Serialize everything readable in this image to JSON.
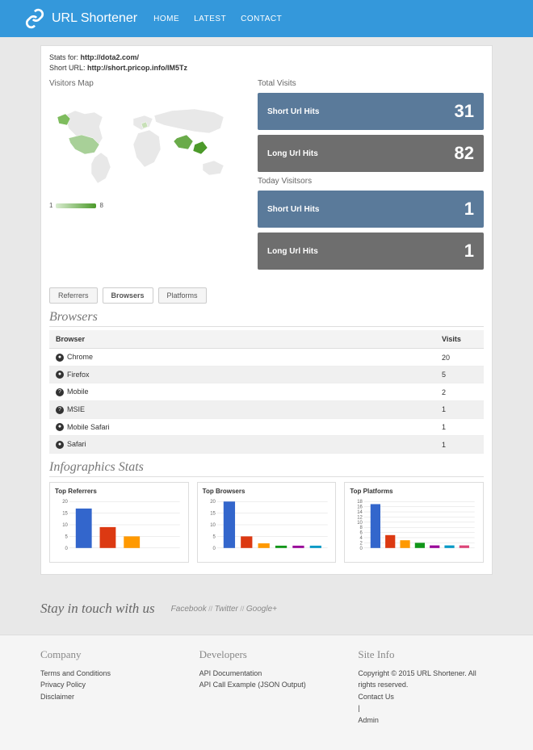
{
  "header": {
    "brand": "URL Shortener",
    "nav": [
      "HOME",
      "LATEST",
      "CONTACT"
    ]
  },
  "stats_for_label": "Stats for:",
  "stats_for_url": "http://dota2.com/",
  "short_url_label": "Short URL:",
  "short_url": "http://short.pricop.info/IM5Tz",
  "visitors_map_title": "Visitors Map",
  "legend": {
    "min": "1",
    "max": "8"
  },
  "total_visits_title": "Total Visits",
  "today_visitors_title": "Today Visitsors",
  "total_stats": [
    {
      "label": "Short Url Hits",
      "value": "31",
      "color": "blue"
    },
    {
      "label": "Long Url Hits",
      "value": "82",
      "color": "gray"
    }
  ],
  "today_stats": [
    {
      "label": "Short Url Hits",
      "value": "1",
      "color": "blue"
    },
    {
      "label": "Long Url Hits",
      "value": "1",
      "color": "gray"
    }
  ],
  "tabs": [
    "Referrers",
    "Browsers",
    "Platforms"
  ],
  "active_tab": "Browsers",
  "browsers_heading": "Browsers",
  "table_headers": [
    "Browser",
    "Visits"
  ],
  "browsers": [
    {
      "icon": "●",
      "name": "Chrome",
      "visits": "20"
    },
    {
      "icon": "●",
      "name": "Firefox",
      "visits": "5"
    },
    {
      "icon": "?",
      "name": "Mobile",
      "visits": "2"
    },
    {
      "icon": "?",
      "name": "MSIE",
      "visits": "1"
    },
    {
      "icon": "●",
      "name": "Mobile Safari",
      "visits": "1"
    },
    {
      "icon": "●",
      "name": "Safari",
      "visits": "1"
    }
  ],
  "infographics_heading": "Infographics Stats",
  "charts": [
    {
      "title": "Top Referrers",
      "ymax": 20,
      "ytick": 5,
      "values": [
        17,
        9,
        5
      ],
      "colors": [
        "#3366cc",
        "#dc3912",
        "#ff9900"
      ]
    },
    {
      "title": "Top Browsers",
      "ymax": 20,
      "ytick": 5,
      "values": [
        20,
        5,
        2,
        1,
        1,
        1
      ],
      "colors": [
        "#3366cc",
        "#dc3912",
        "#ff9900",
        "#109618",
        "#990099",
        "#0099c6"
      ]
    },
    {
      "title": "Top Platforms",
      "ymax": 18,
      "ytick": 2,
      "values": [
        17,
        5,
        3,
        2,
        1,
        1,
        1
      ],
      "colors": [
        "#3366cc",
        "#dc3912",
        "#ff9900",
        "#109618",
        "#990099",
        "#0099c6",
        "#dd4477"
      ]
    }
  ],
  "stay_in_touch": "Stay in touch with us",
  "social": [
    "Facebook",
    "Twitter",
    "Google+"
  ],
  "footer": {
    "company": {
      "title": "Company",
      "links": [
        "Terms and Conditions",
        "Privacy Policy",
        "Disclaimer"
      ]
    },
    "developers": {
      "title": "Developers",
      "links": [
        "API Documentation",
        "API Call Example (JSON Output)"
      ]
    },
    "siteinfo": {
      "title": "Site Info",
      "copyright": "Copyright © 2015 URL Shortener. All rights reserved.",
      "contact": "Contact Us",
      "admin": "Admin"
    }
  }
}
